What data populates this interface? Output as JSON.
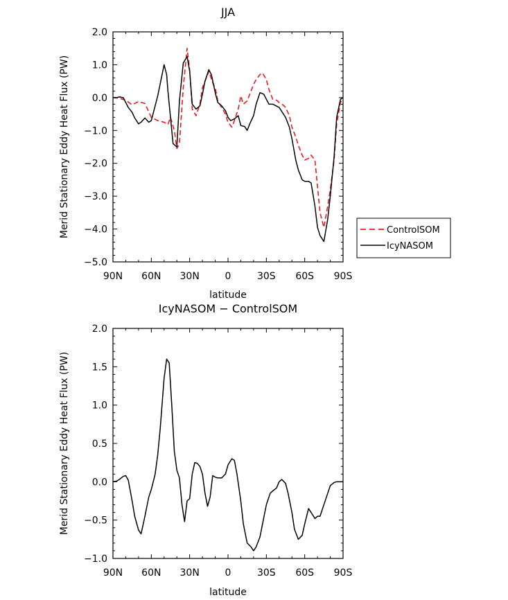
{
  "chart_data": [
    {
      "type": "line",
      "title": "JJA",
      "xlabel": "latitude",
      "ylabel": "Merid Stationary Eddy Heat Flux (PW)",
      "xlim": [
        90,
        -90
      ],
      "ylim": [
        -5.0,
        2.0
      ],
      "xticks": [
        90,
        60,
        30,
        0,
        -30,
        -60,
        -90
      ],
      "xtick_labels": [
        "90N",
        "60N",
        "30N",
        "0",
        "30S",
        "60S",
        "90S"
      ],
      "yticks": [
        2.0,
        1.0,
        0.0,
        -1.0,
        -2.0,
        -3.0,
        -4.0,
        -5.0
      ],
      "ytick_labels": [
        "2.0",
        "1.0",
        "0.0",
        "−1.0",
        "−2.0",
        "−3.0",
        "−4.0",
        "−5.0"
      ],
      "legend_position": "outside-right",
      "series": [
        {
          "name": "ControlSOM",
          "color": "#e8191e",
          "dash": "dashed",
          "x": [
            90,
            85,
            80,
            75,
            70,
            65,
            60,
            55,
            50,
            47,
            45,
            42,
            40,
            38,
            35,
            32,
            30,
            28,
            25,
            22,
            20,
            17,
            15,
            12,
            10,
            8,
            5,
            2,
            0,
            -3,
            -5,
            -8,
            -10,
            -12,
            -15,
            -17,
            -20,
            -22,
            -25,
            -27,
            -30,
            -32,
            -35,
            -38,
            -40,
            -43,
            -45,
            -48,
            -50,
            -53,
            -55,
            -58,
            -60,
            -63,
            -65,
            -68,
            -70,
            -72,
            -75,
            -78,
            -80,
            -83,
            -85,
            -88,
            -90
          ],
          "y": [
            0.0,
            -0.02,
            -0.08,
            -0.22,
            -0.12,
            -0.18,
            -0.6,
            -0.7,
            -0.75,
            -0.82,
            -0.6,
            -1.0,
            -1.55,
            -1.4,
            0.3,
            1.5,
            0.85,
            -0.35,
            -0.55,
            -0.2,
            0.3,
            0.6,
            0.8,
            0.45,
            0.3,
            -0.1,
            -0.3,
            -0.5,
            -0.75,
            -0.9,
            -0.7,
            -0.35,
            0.05,
            -0.2,
            -0.1,
            0.1,
            0.4,
            0.55,
            0.7,
            0.75,
            0.55,
            0.25,
            -0.05,
            -0.08,
            -0.15,
            -0.22,
            -0.3,
            -0.55,
            -0.9,
            -1.2,
            -1.45,
            -1.75,
            -1.9,
            -1.85,
            -1.75,
            -1.9,
            -2.7,
            -3.5,
            -3.95,
            -3.3,
            -2.8,
            -1.9,
            -0.8,
            -0.15,
            0.0
          ]
        },
        {
          "name": "IcyNASOM",
          "color": "#000000",
          "dash": "solid",
          "x": [
            90,
            87,
            85,
            82,
            80,
            78,
            75,
            73,
            70,
            68,
            65,
            62,
            60,
            55,
            50,
            48,
            47,
            45,
            43,
            40,
            38,
            35,
            32,
            30,
            28,
            25,
            22,
            20,
            18,
            15,
            13,
            10,
            8,
            5,
            2,
            0,
            -2,
            -5,
            -8,
            -10,
            -13,
            -15,
            -17,
            -20,
            -22,
            -25,
            -28,
            -30,
            -32,
            -35,
            -40,
            -45,
            -48,
            -50,
            -53,
            -55,
            -58,
            -60,
            -63,
            -65,
            -68,
            -70,
            -72,
            -75,
            -78,
            -80,
            -83,
            -85,
            -88,
            -90
          ],
          "y": [
            0.0,
            0.0,
            0.02,
            0.0,
            -0.15,
            -0.3,
            -0.45,
            -0.62,
            -0.8,
            -0.75,
            -0.62,
            -0.75,
            -0.7,
            0.05,
            1.0,
            0.7,
            0.2,
            -0.6,
            -1.4,
            -1.5,
            -0.1,
            1.05,
            1.25,
            0.8,
            -0.2,
            -0.35,
            -0.25,
            0.1,
            0.5,
            0.85,
            0.7,
            0.15,
            -0.15,
            -0.25,
            -0.4,
            -0.6,
            -0.7,
            -0.65,
            -0.55,
            -0.85,
            -0.88,
            -1.0,
            -0.8,
            -0.55,
            -0.2,
            0.15,
            0.1,
            -0.05,
            -0.2,
            -0.2,
            -0.3,
            -0.6,
            -0.9,
            -1.25,
            -1.9,
            -2.2,
            -2.5,
            -2.55,
            -2.55,
            -2.6,
            -3.3,
            -3.95,
            -4.2,
            -4.38,
            -3.7,
            -3.0,
            -1.8,
            -0.6,
            -0.05,
            0.0
          ]
        }
      ]
    },
    {
      "type": "line",
      "title": "IcyNASOM − ControlSOM",
      "xlabel": "latitude",
      "ylabel": "Merid Stationary Eddy Heat Flux (PW)",
      "xlim": [
        90,
        -90
      ],
      "ylim": [
        -1.0,
        2.0
      ],
      "xticks": [
        90,
        60,
        30,
        0,
        -30,
        -60,
        -90
      ],
      "xtick_labels": [
        "90N",
        "60N",
        "30N",
        "0",
        "30S",
        "60S",
        "90S"
      ],
      "yticks": [
        2.0,
        1.5,
        1.0,
        0.5,
        0.0,
        -0.5,
        -1.0
      ],
      "ytick_labels": [
        "2.0",
        "1.5",
        "1.0",
        "0.5",
        "0.0",
        "−0.5",
        "−1.0"
      ],
      "series": [
        {
          "color": "#000000",
          "dash": "solid",
          "x": [
            90,
            87,
            85,
            82,
            80,
            78,
            75,
            73,
            70,
            68,
            65,
            62,
            60,
            57,
            55,
            53,
            50,
            48,
            46,
            44,
            42,
            40,
            38,
            36,
            34,
            32,
            30,
            28,
            26,
            24,
            22,
            20,
            18,
            16,
            14,
            12,
            10,
            8,
            5,
            2,
            0,
            -3,
            -5,
            -7,
            -10,
            -12,
            -15,
            -18,
            -20,
            -22,
            -25,
            -27,
            -30,
            -33,
            -35,
            -38,
            -40,
            -42,
            -45,
            -47,
            -50,
            -52,
            -55,
            -58,
            -60,
            -63,
            -65,
            -68,
            -70,
            -72,
            -75,
            -78,
            -80,
            -83,
            -85,
            -87,
            -90
          ],
          "y": [
            0.0,
            0.01,
            0.03,
            0.07,
            0.08,
            0.02,
            -0.25,
            -0.45,
            -0.63,
            -0.68,
            -0.45,
            -0.2,
            -0.1,
            0.1,
            0.35,
            0.7,
            1.35,
            1.6,
            1.55,
            1.0,
            0.4,
            0.15,
            0.05,
            -0.3,
            -0.52,
            -0.25,
            -0.22,
            0.1,
            0.25,
            0.24,
            0.2,
            0.1,
            -0.15,
            -0.32,
            -0.2,
            0.08,
            0.06,
            0.05,
            0.05,
            0.1,
            0.22,
            0.3,
            0.28,
            0.1,
            -0.25,
            -0.55,
            -0.8,
            -0.85,
            -0.9,
            -0.85,
            -0.72,
            -0.55,
            -0.3,
            -0.15,
            -0.12,
            -0.08,
            0.0,
            0.03,
            -0.02,
            -0.15,
            -0.4,
            -0.62,
            -0.75,
            -0.7,
            -0.55,
            -0.35,
            -0.4,
            -0.48,
            -0.45,
            -0.45,
            -0.3,
            -0.15,
            -0.05,
            -0.01,
            0.0,
            0.0,
            0.0
          ]
        }
      ]
    }
  ]
}
